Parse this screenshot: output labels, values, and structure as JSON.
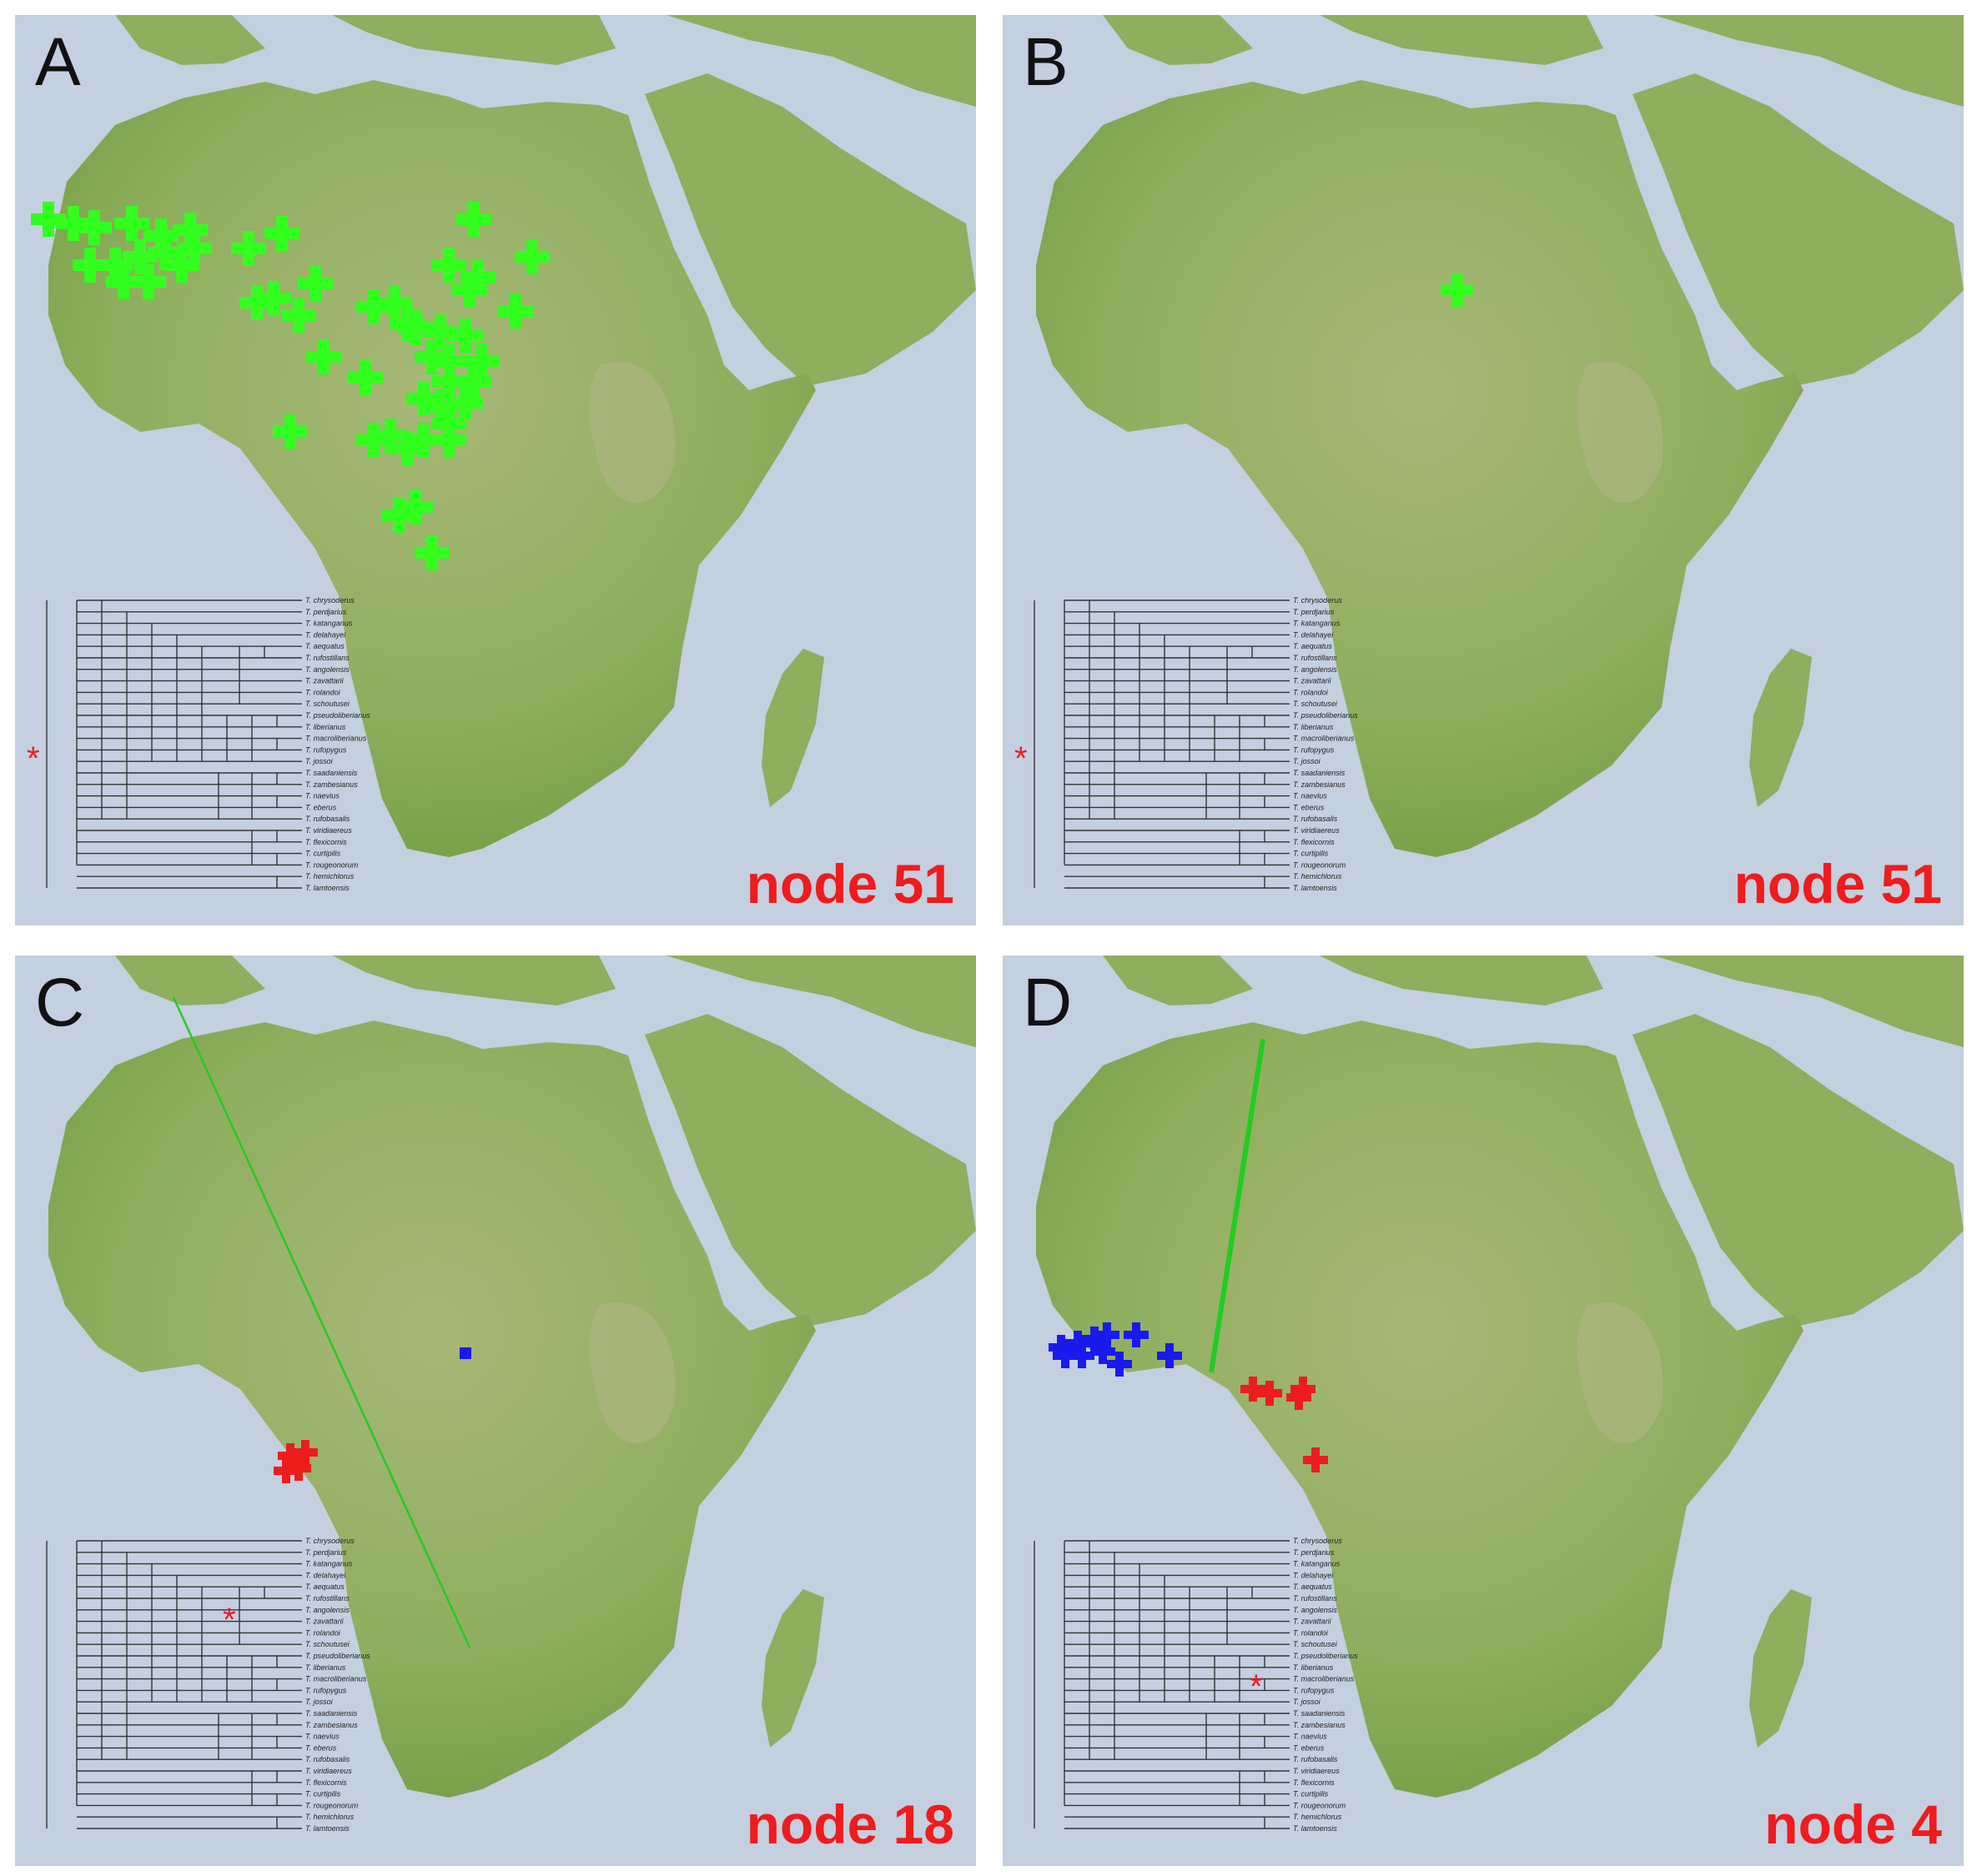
{
  "panels": [
    {
      "id": "A",
      "letter": "A",
      "node_label": "node 51"
    },
    {
      "id": "B",
      "letter": "B",
      "node_label": "node 51"
    },
    {
      "id": "C",
      "letter": "C",
      "node_label": "node 18"
    },
    {
      "id": "D",
      "letter": "D",
      "node_label": "node 4"
    }
  ],
  "tree_taxa": [
    "T. chrysoderus",
    "T. perdjarius",
    "T. katanganus",
    "T. delahayei",
    "T. aequatus",
    "T. rufostillans",
    "T. angolensis",
    "T. zavattarii",
    "T. rolandoi",
    "T. schoutusei",
    "T. pseudoliberianus",
    "T. liberianus",
    "T. macroliberianus",
    "T. rufopygus",
    "T. jossoi",
    "T. saadaniensis",
    "T. zambesianus",
    "T. naevius",
    "T. eberus",
    "T. rufobasalis",
    "T. viridiaereus",
    "T. flexicornis",
    "T. curtipilis",
    "T. rougeonorum",
    "T. hemichlorus",
    "T. lamtoensis"
  ],
  "tree_marker": "*",
  "colors": {
    "ocean": "#c4cfe0",
    "land": "#8fae5e",
    "green_marks": "#33ff1f",
    "blue_marks": "#1a1aee",
    "red_marks": "#ee1c1c",
    "boundary_line": "#22cc22"
  }
}
